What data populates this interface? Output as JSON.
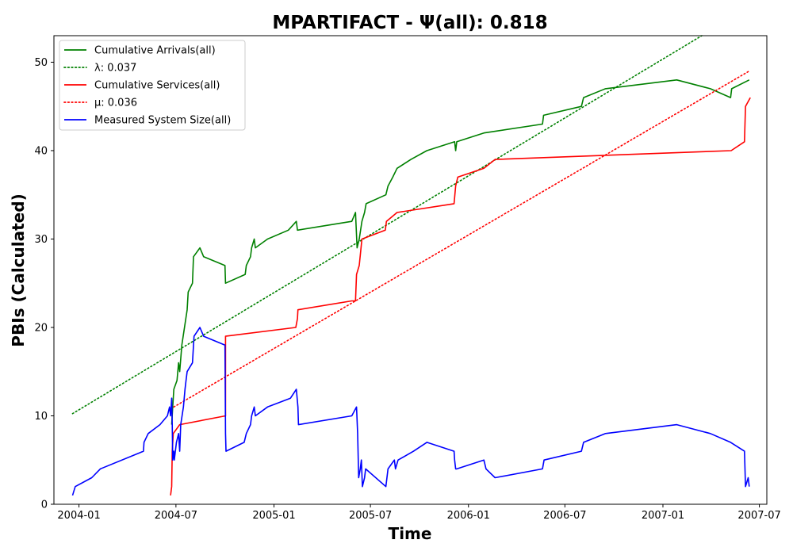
{
  "chart_data": {
    "type": "line",
    "title": "MPARTIFACT -  Ψ(all): 0.818",
    "xlabel": "Time",
    "ylabel": "PBIs (Calculated)",
    "xlim": [
      "2003-11-15",
      "2007-07-15"
    ],
    "ylim": [
      0,
      53
    ],
    "grid": false,
    "legend_position": "top-left",
    "x_ticks": [
      {
        "date": "2004-01-01",
        "label": "2004-01"
      },
      {
        "date": "2004-07-01",
        "label": "2004-07"
      },
      {
        "date": "2005-01-01",
        "label": "2005-01"
      },
      {
        "date": "2005-07-01",
        "label": "2005-07"
      },
      {
        "date": "2006-01-01",
        "label": "2006-01"
      },
      {
        "date": "2006-07-01",
        "label": "2006-07"
      },
      {
        "date": "2007-01-01",
        "label": "2007-01"
      },
      {
        "date": "2007-07-01",
        "label": "2007-07"
      }
    ],
    "y_ticks": [
      0,
      10,
      20,
      30,
      40,
      50
    ],
    "series": [
      {
        "name": "Cumulative Arrivals(all)",
        "color": "#008000",
        "style": "solid",
        "points": [
          [
            "2004-06-23",
            9
          ],
          [
            "2004-06-25",
            11
          ],
          [
            "2004-06-27",
            13
          ],
          [
            "2004-07-03",
            14
          ],
          [
            "2004-07-06",
            16
          ],
          [
            "2004-07-08",
            15
          ],
          [
            "2004-07-12",
            18
          ],
          [
            "2004-07-22",
            22
          ],
          [
            "2004-07-24",
            24
          ],
          [
            "2004-08-01",
            25
          ],
          [
            "2004-08-03",
            28
          ],
          [
            "2004-08-15",
            29
          ],
          [
            "2004-08-22",
            28
          ],
          [
            "2004-10-01",
            27
          ],
          [
            "2004-10-02",
            25
          ],
          [
            "2004-11-08",
            26
          ],
          [
            "2004-11-10",
            27
          ],
          [
            "2004-11-18",
            28
          ],
          [
            "2004-11-20",
            29
          ],
          [
            "2004-11-25",
            30
          ],
          [
            "2004-11-27",
            29
          ],
          [
            "2004-12-20",
            30
          ],
          [
            "2005-01-28",
            31
          ],
          [
            "2005-02-12",
            32
          ],
          [
            "2005-02-14",
            31
          ],
          [
            "2005-05-27",
            32
          ],
          [
            "2005-06-03",
            33
          ],
          [
            "2005-06-06",
            29
          ],
          [
            "2005-06-10",
            30
          ],
          [
            "2005-06-15",
            32
          ],
          [
            "2005-06-20",
            33
          ],
          [
            "2005-06-23",
            34
          ],
          [
            "2005-07-30",
            35
          ],
          [
            "2005-08-03",
            36
          ],
          [
            "2005-08-12",
            37
          ],
          [
            "2005-08-20",
            38
          ],
          [
            "2005-09-15",
            39
          ],
          [
            "2005-10-15",
            40
          ],
          [
            "2005-12-06",
            41
          ],
          [
            "2005-12-08",
            40
          ],
          [
            "2005-12-10",
            41
          ],
          [
            "2006-01-30",
            42
          ],
          [
            "2006-05-20",
            43
          ],
          [
            "2006-05-22",
            44
          ],
          [
            "2006-08-01",
            45
          ],
          [
            "2006-08-05",
            46
          ],
          [
            "2006-09-15",
            47
          ],
          [
            "2007-01-27",
            48
          ],
          [
            "2007-03-31",
            47
          ],
          [
            "2007-05-08",
            46
          ],
          [
            "2007-05-10",
            47
          ],
          [
            "2007-06-12",
            48
          ]
        ]
      },
      {
        "name": "λ: 0.037",
        "color": "#008000",
        "style": "dotted",
        "points": [
          [
            "2003-12-20",
            10.25
          ],
          [
            "2007-03-15",
            53
          ]
        ]
      },
      {
        "name": "Cumulative Services(all)",
        "color": "#ff0000",
        "style": "solid",
        "points": [
          [
            "2004-06-21",
            1
          ],
          [
            "2004-06-23",
            2
          ],
          [
            "2004-06-24",
            6
          ],
          [
            "2004-06-26",
            8
          ],
          [
            "2004-07-08",
            9
          ],
          [
            "2004-10-02",
            10
          ],
          [
            "2004-10-02",
            19
          ],
          [
            "2005-02-11",
            20
          ],
          [
            "2005-02-14",
            21
          ],
          [
            "2005-02-15",
            22
          ],
          [
            "2005-05-27",
            23
          ],
          [
            "2005-06-03",
            23
          ],
          [
            "2005-06-05",
            26
          ],
          [
            "2005-06-10",
            27
          ],
          [
            "2005-06-15",
            30
          ],
          [
            "2005-07-29",
            31
          ],
          [
            "2005-07-31",
            32
          ],
          [
            "2005-08-20",
            33
          ],
          [
            "2005-12-05",
            34
          ],
          [
            "2005-12-08",
            36
          ],
          [
            "2005-12-12",
            37
          ],
          [
            "2006-01-30",
            38
          ],
          [
            "2006-02-20",
            39
          ],
          [
            "2007-05-09",
            40
          ],
          [
            "2007-06-03",
            41
          ],
          [
            "2007-06-05",
            45
          ],
          [
            "2007-06-14",
            46
          ]
        ]
      },
      {
        "name": "μ: 0.036",
        "color": "#ff0000",
        "style": "dotted",
        "points": [
          [
            "2004-06-27",
            11
          ],
          [
            "2007-06-12",
            49
          ]
        ]
      },
      {
        "name": "Measured System Size(all)",
        "color": "#0000ff",
        "style": "solid",
        "points": [
          [
            "2003-12-20",
            1
          ],
          [
            "2003-12-25",
            2
          ],
          [
            "2004-01-25",
            3
          ],
          [
            "2004-02-10",
            4
          ],
          [
            "2004-05-01",
            6
          ],
          [
            "2004-05-02",
            7
          ],
          [
            "2004-05-10",
            8
          ],
          [
            "2004-06-01",
            9
          ],
          [
            "2004-06-15",
            10
          ],
          [
            "2004-06-19",
            11
          ],
          [
            "2004-06-21",
            10
          ],
          [
            "2004-06-23",
            12
          ],
          [
            "2004-06-24",
            9
          ],
          [
            "2004-06-25",
            5
          ],
          [
            "2004-06-27",
            6
          ],
          [
            "2004-06-28",
            5
          ],
          [
            "2004-07-02",
            7
          ],
          [
            "2004-07-06",
            8
          ],
          [
            "2004-07-08",
            6
          ],
          [
            "2004-07-10",
            9
          ],
          [
            "2004-07-15",
            11
          ],
          [
            "2004-07-18",
            13
          ],
          [
            "2004-07-20",
            14
          ],
          [
            "2004-07-22",
            15
          ],
          [
            "2004-08-01",
            16
          ],
          [
            "2004-08-04",
            19
          ],
          [
            "2004-08-15",
            20
          ],
          [
            "2004-08-22",
            19
          ],
          [
            "2004-10-01",
            18
          ],
          [
            "2004-10-02",
            8
          ],
          [
            "2004-10-03",
            6
          ],
          [
            "2004-11-06",
            7
          ],
          [
            "2004-11-10",
            8
          ],
          [
            "2004-11-18",
            9
          ],
          [
            "2004-11-20",
            10
          ],
          [
            "2004-11-25",
            11
          ],
          [
            "2004-11-27",
            10
          ],
          [
            "2004-12-20",
            11
          ],
          [
            "2005-02-01",
            12
          ],
          [
            "2005-02-12",
            13
          ],
          [
            "2005-02-15",
            11
          ],
          [
            "2005-02-16",
            9
          ],
          [
            "2005-05-27",
            10
          ],
          [
            "2005-06-05",
            11
          ],
          [
            "2005-06-07",
            8
          ],
          [
            "2005-06-09",
            3
          ],
          [
            "2005-06-12",
            4
          ],
          [
            "2005-06-14",
            5
          ],
          [
            "2005-06-16",
            2
          ],
          [
            "2005-06-20",
            3
          ],
          [
            "2005-06-22",
            4
          ],
          [
            "2005-07-30",
            2
          ],
          [
            "2005-08-03",
            4
          ],
          [
            "2005-08-15",
            5
          ],
          [
            "2005-08-17",
            4
          ],
          [
            "2005-08-22",
            5
          ],
          [
            "2005-09-20",
            6
          ],
          [
            "2005-10-15",
            7
          ],
          [
            "2005-12-05",
            6
          ],
          [
            "2005-12-06",
            5
          ],
          [
            "2005-12-08",
            4
          ],
          [
            "2005-12-10",
            4
          ],
          [
            "2006-01-30",
            5
          ],
          [
            "2006-02-03",
            4
          ],
          [
            "2006-02-20",
            3
          ],
          [
            "2006-05-20",
            4
          ],
          [
            "2006-05-23",
            5
          ],
          [
            "2006-08-01",
            6
          ],
          [
            "2006-08-05",
            7
          ],
          [
            "2006-09-15",
            8
          ],
          [
            "2007-01-27",
            9
          ],
          [
            "2007-03-31",
            8
          ],
          [
            "2007-05-08",
            7
          ],
          [
            "2007-06-03",
            6
          ],
          [
            "2007-06-05",
            2
          ],
          [
            "2007-06-10",
            3
          ],
          [
            "2007-06-12",
            2
          ]
        ]
      }
    ]
  }
}
